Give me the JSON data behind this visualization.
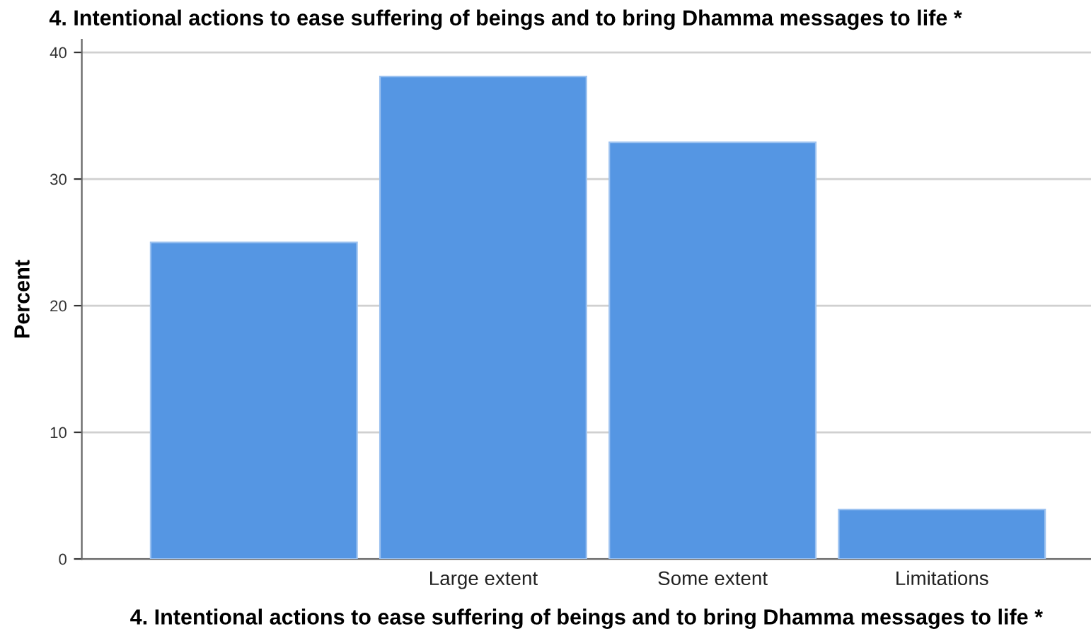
{
  "chart_data": {
    "type": "bar",
    "title": "4. Intentional actions to ease suffering of beings and to bring Dhamma messages to life *",
    "xlabel": "4. Intentional actions to ease suffering of beings and to bring Dhamma messages to life *",
    "ylabel": "Percent",
    "categories": [
      null,
      "Large extent",
      "Some extent",
      "Limitations"
    ],
    "values": [
      25.0,
      38.1,
      32.9,
      3.9
    ],
    "color": "#5596e3",
    "ylim": [
      0,
      41
    ],
    "yticks": [
      0,
      10,
      20,
      30,
      40
    ],
    "grid": "y"
  }
}
